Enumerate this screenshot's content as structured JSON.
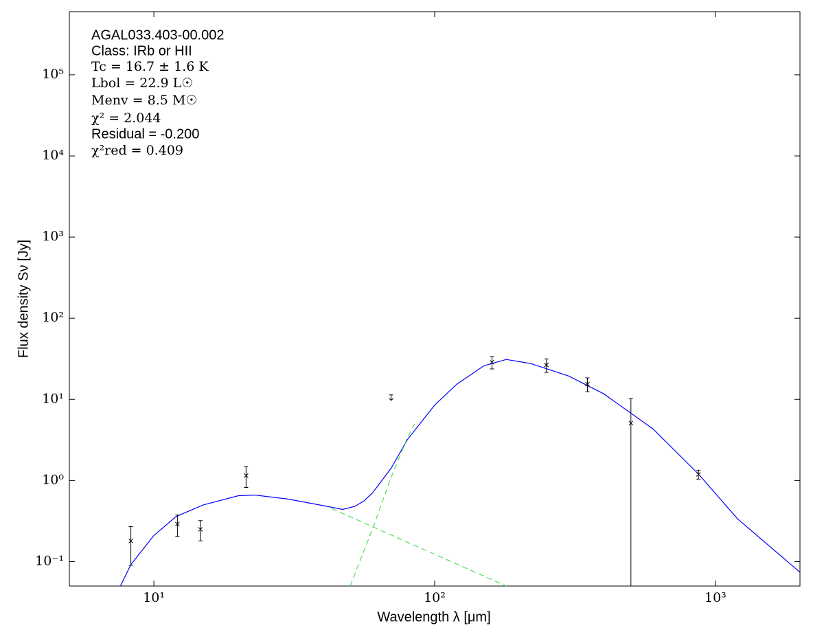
{
  "chart_data": {
    "type": "scatter",
    "xscale": "log",
    "yscale": "log",
    "xlabel": "Wavelength λ [μm]",
    "ylabel": "Flux density Sν [Jy]",
    "xlim": [
      5,
      2000
    ],
    "ylim": [
      0.05,
      600000
    ],
    "xticks": [
      {
        "value": 10,
        "label": "10¹"
      },
      {
        "value": 100,
        "label": "10²"
      },
      {
        "value": 1000,
        "label": "10³"
      }
    ],
    "yticks": [
      {
        "value": 0.1,
        "label": "10⁻¹"
      },
      {
        "value": 1,
        "label": "10⁰"
      },
      {
        "value": 10,
        "label": "10¹"
      },
      {
        "value": 100,
        "label": "10²"
      },
      {
        "value": 1000,
        "label": "10³"
      },
      {
        "value": 10000,
        "label": "10⁴"
      },
      {
        "value": 100000,
        "label": "10⁵"
      }
    ],
    "annotations": [
      {
        "text": "AGAL033.403-00.002",
        "style": "sans"
      },
      {
        "text": "Class: IRb or HII",
        "style": "sans"
      },
      {
        "text": "Tc = 16.7 ± 1.6 K",
        "style": "math"
      },
      {
        "text": "Lbol = 22.9 L☉",
        "style": "math"
      },
      {
        "text": "Menv = 8.5 M☉",
        "style": "math"
      },
      {
        "text": "χ² = 2.044",
        "style": "math"
      },
      {
        "text": "Residual = -0.200",
        "style": "sans"
      },
      {
        "text": "χ²red = 0.409",
        "style": "math"
      }
    ],
    "x": [
      8.28,
      12.13,
      14.65,
      21.3,
      70,
      160,
      250,
      350,
      500,
      870
    ],
    "values": [
      0.18,
      0.29,
      0.25,
      1.15,
      10.5,
      28.7,
      26.5,
      15.4,
      5.1,
      1.19
    ],
    "errors": [
      0.09,
      0.085,
      0.07,
      0.33,
      null,
      5,
      5,
      3,
      5.1,
      0.15
    ],
    "upper_limit": [
      false,
      false,
      false,
      false,
      true,
      false,
      false,
      false,
      false,
      false
    ],
    "color": "#000000",
    "curves": [
      {
        "x": [
          7.6,
          8.28,
          10,
          12,
          15,
          20,
          23,
          30,
          40,
          47,
          52,
          56,
          60,
          70,
          80,
          100,
          120,
          150,
          180,
          220,
          300,
          400,
          600,
          870,
          1200,
          2000
        ],
        "values": [
          0.05,
          0.092,
          0.21,
          0.36,
          0.5,
          0.65,
          0.66,
          0.59,
          0.49,
          0.44,
          0.48,
          0.56,
          0.7,
          1.42,
          3.2,
          8.5,
          15.4,
          26,
          31,
          27.6,
          19.4,
          11.7,
          4.3,
          1.2,
          0.335,
          0.074
        ],
        "color": "#0000ff",
        "dashed": false
      },
      {
        "x": [
          43,
          180
        ],
        "values": [
          0.45,
          0.05
        ],
        "color": "#55dd55",
        "dashed": true
      },
      {
        "x": [
          50,
          60,
          70,
          80,
          85
        ],
        "values": [
          0.05,
          0.25,
          1.1,
          3.4,
          5
        ],
        "color": "#55dd55",
        "dashed": true
      }
    ]
  }
}
